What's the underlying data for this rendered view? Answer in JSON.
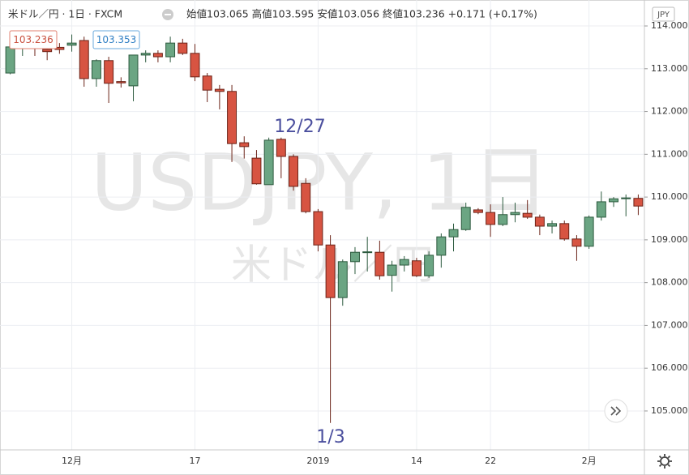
{
  "chart_data": {
    "type": "candlestick",
    "title": "米ドル／円 · 1日 · FXCM",
    "subtitle": "始値103.065 高値103.595 安値103.056 終値103.236 +0.171 (+0.17%)",
    "currency": "JPY",
    "watermark": "USDJPY, 1日",
    "watermark_sub": "米ドル／円",
    "price_labels": [
      "103.236",
      "103.353"
    ],
    "annotations": [
      "12/27",
      "1/3"
    ],
    "up_color": "#6ba583",
    "down_color": "#d75442",
    "grid": true,
    "categories": [
      null,
      null,
      null,
      null,
      null,
      "12月",
      null,
      null,
      null,
      null,
      null,
      null,
      null,
      null,
      null,
      "17",
      null,
      null,
      null,
      null,
      null,
      null,
      null,
      null,
      null,
      "2019",
      null,
      null,
      null,
      null,
      null,
      null,
      null,
      "14",
      null,
      null,
      null,
      null,
      null,
      "22",
      null,
      null,
      null,
      null,
      null,
      null,
      null,
      "2月",
      null,
      null,
      null,
      null
    ],
    "open": [
      112.9,
      113.55,
      113.6,
      113.45,
      113.5,
      113.55,
      113.66,
      112.77,
      113.19,
      112.7,
      112.6,
      113.32,
      113.36,
      113.28,
      113.6,
      113.36,
      112.83,
      112.52,
      112.47,
      111.27,
      110.91,
      110.29,
      111.35,
      110.95,
      110.32,
      109.66,
      108.88,
      107.65,
      108.49,
      108.71,
      108.71,
      108.17,
      108.41,
      108.51,
      108.16,
      108.64,
      109.07,
      109.24,
      109.7,
      109.64,
      109.36,
      109.59,
      109.62,
      109.53,
      109.32,
      109.38,
      109.02,
      108.85,
      109.53,
      109.89,
      109.97,
      109.97
    ],
    "high": [
      113.56,
      113.8,
      113.8,
      113.6,
      113.6,
      113.8,
      113.75,
      113.22,
      113.28,
      112.8,
      113.32,
      113.43,
      113.43,
      113.75,
      113.7,
      113.58,
      112.9,
      112.62,
      112.62,
      111.42,
      111.1,
      111.39,
      111.39,
      111.0,
      110.44,
      109.72,
      109.11,
      108.54,
      108.83,
      109.07,
      108.98,
      108.51,
      108.62,
      108.58,
      108.73,
      109.15,
      109.38,
      109.87,
      109.74,
      109.83,
      110.0,
      109.87,
      109.93,
      109.59,
      109.45,
      109.45,
      109.11,
      109.57,
      110.13,
      110.0,
      110.06,
      110.06
    ],
    "low": [
      112.87,
      113.3,
      113.3,
      113.2,
      113.35,
      113.4,
      112.58,
      112.58,
      112.2,
      112.56,
      112.24,
      113.15,
      113.15,
      113.15,
      113.32,
      112.71,
      112.22,
      112.05,
      110.82,
      110.9,
      110.29,
      110.29,
      110.44,
      110.15,
      109.62,
      108.73,
      104.72,
      107.46,
      108.2,
      108.26,
      108.07,
      107.79,
      108.26,
      108.13,
      108.11,
      108.35,
      108.73,
      109.21,
      109.6,
      109.07,
      109.32,
      109.41,
      109.49,
      109.11,
      109.15,
      108.98,
      108.51,
      108.79,
      109.45,
      109.77,
      109.55,
      109.58
    ],
    "close": [
      113.51,
      113.6,
      113.5,
      113.4,
      113.45,
      113.6,
      112.77,
      113.19,
      112.66,
      112.67,
      113.32,
      113.36,
      113.28,
      113.6,
      113.36,
      112.81,
      112.5,
      112.47,
      111.25,
      111.18,
      110.31,
      111.33,
      110.95,
      110.25,
      109.66,
      108.88,
      107.65,
      108.49,
      108.71,
      108.72,
      108.16,
      108.41,
      108.54,
      108.16,
      108.64,
      109.07,
      109.24,
      109.76,
      109.64,
      109.36,
      109.59,
      109.64,
      109.53,
      109.32,
      109.38,
      109.02,
      108.85,
      109.53,
      109.89,
      109.96,
      109.98,
      109.79
    ],
    "ylim": [
      104.09,
      114.19
    ],
    "yticks": [
      {
        "value": 105,
        "label": "105.000"
      },
      {
        "value": 106,
        "label": "106.000"
      },
      {
        "value": 107,
        "label": "107.000"
      },
      {
        "value": 108,
        "label": "108.000"
      },
      {
        "value": 109,
        "label": "109.000"
      },
      {
        "value": 110,
        "label": "110.000"
      },
      {
        "value": 111,
        "label": "111.000"
      },
      {
        "value": 112,
        "label": "112.000"
      },
      {
        "value": 113,
        "label": "113.000"
      },
      {
        "value": 114,
        "label": "114.000"
      }
    ]
  }
}
